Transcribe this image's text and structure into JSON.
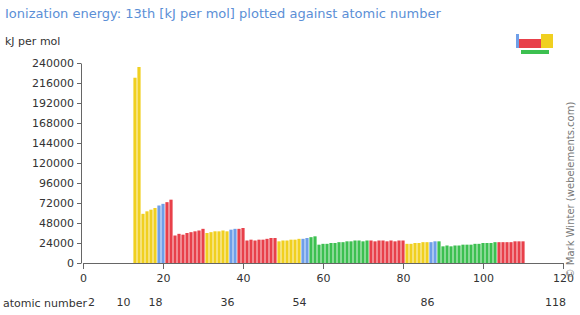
{
  "chart_data": {
    "type": "bar",
    "title": "Ionization energy: 13th [kJ per mol] plotted against atomic number",
    "ylabel": "kJ per mol",
    "xlabel": "atomic number",
    "annotation": "© Mark Winter (webelements.com)",
    "x": [
      13,
      14,
      15,
      16,
      17,
      18,
      19,
      20,
      21,
      22,
      23,
      24,
      25,
      26,
      27,
      28,
      29,
      30,
      31,
      32,
      33,
      34,
      35,
      36,
      37,
      38,
      39,
      40,
      41,
      42,
      43,
      44,
      45,
      46,
      47,
      48,
      49,
      50,
      51,
      52,
      53,
      54,
      55,
      56,
      57,
      58,
      59,
      60,
      61,
      62,
      63,
      64,
      65,
      66,
      67,
      68,
      69,
      70,
      71,
      72,
      73,
      74,
      75,
      76,
      77,
      78,
      79,
      80,
      81,
      82,
      83,
      84,
      85,
      86,
      87,
      88,
      89,
      90,
      91,
      92,
      93,
      94,
      95,
      96,
      97,
      98,
      99,
      100,
      101,
      102,
      103,
      104,
      105,
      106,
      107,
      108,
      109,
      110
    ],
    "values": [
      222315,
      235196,
      59000,
      62000,
      64000,
      66000,
      69000,
      71000,
      73000,
      76000,
      33000,
      35000,
      34000,
      36000,
      37000,
      38000,
      39000,
      41000,
      36000,
      37000,
      38000,
      38000,
      39000,
      38000,
      40000,
      41000,
      41000,
      42000,
      27000,
      28000,
      27000,
      28000,
      28000,
      29000,
      30000,
      30000,
      26000,
      27000,
      27000,
      28000,
      28000,
      29000,
      29000,
      30000,
      31000,
      32000,
      22000,
      23000,
      23000,
      24000,
      24000,
      25000,
      25000,
      26000,
      26000,
      27000,
      27000,
      26000,
      27000,
      27000,
      26000,
      27000,
      27000,
      26000,
      27000,
      26000,
      27000,
      27000,
      23000,
      23000,
      24000,
      24000,
      25000,
      25000,
      25000,
      26000,
      26000,
      20000,
      21000,
      20000,
      21000,
      21000,
      22000,
      22000,
      22000,
      23000,
      23000,
      24000,
      24000,
      24000,
      25000,
      25000,
      25000,
      25000,
      25000,
      26000,
      26000,
      26000
    ],
    "colors": [
      "#f0d020",
      "#f0d020",
      "#f0d020",
      "#f0d020",
      "#f0d020",
      "#f0d020",
      "#6f9fe8",
      "#6f9fe8",
      "#e8404a",
      "#e8404a",
      "#e8404a",
      "#e8404a",
      "#e8404a",
      "#e8404a",
      "#e8404a",
      "#e8404a",
      "#e8404a",
      "#e8404a",
      "#f0d020",
      "#f0d020",
      "#f0d020",
      "#f0d020",
      "#f0d020",
      "#f0d020",
      "#6f9fe8",
      "#6f9fe8",
      "#e8404a",
      "#e8404a",
      "#e8404a",
      "#e8404a",
      "#e8404a",
      "#e8404a",
      "#e8404a",
      "#e8404a",
      "#e8404a",
      "#e8404a",
      "#f0d020",
      "#f0d020",
      "#f0d020",
      "#f0d020",
      "#f0d020",
      "#f0d020",
      "#6f9fe8",
      "#6f9fe8",
      "#3cc050",
      "#3cc050",
      "#3cc050",
      "#3cc050",
      "#3cc050",
      "#3cc050",
      "#3cc050",
      "#3cc050",
      "#3cc050",
      "#3cc050",
      "#3cc050",
      "#3cc050",
      "#3cc050",
      "#3cc050",
      "#3cc050",
      "#e8404a",
      "#e8404a",
      "#e8404a",
      "#e8404a",
      "#e8404a",
      "#e8404a",
      "#e8404a",
      "#e8404a",
      "#e8404a",
      "#f0d020",
      "#f0d020",
      "#f0d020",
      "#f0d020",
      "#f0d020",
      "#f0d020",
      "#6f9fe8",
      "#6f9fe8",
      "#3cc050",
      "#3cc050",
      "#3cc050",
      "#3cc050",
      "#3cc050",
      "#3cc050",
      "#3cc050",
      "#3cc050",
      "#3cc050",
      "#3cc050",
      "#3cc050",
      "#3cc050",
      "#3cc050",
      "#3cc050",
      "#3cc050",
      "#e8404a",
      "#e8404a",
      "#e8404a",
      "#e8404a",
      "#e8404a",
      "#e8404a",
      "#e8404a"
    ],
    "xlim": [
      0,
      120
    ],
    "xticks": [
      0,
      20,
      40,
      60,
      80,
      100,
      120
    ],
    "period_ticks": [
      2,
      10,
      18,
      36,
      54,
      86,
      118
    ],
    "ylim": [
      0,
      240000
    ],
    "yticks": [
      0,
      24000,
      48000,
      72000,
      96000,
      120000,
      144000,
      168000,
      192000,
      216000,
      240000
    ],
    "grid": false
  }
}
